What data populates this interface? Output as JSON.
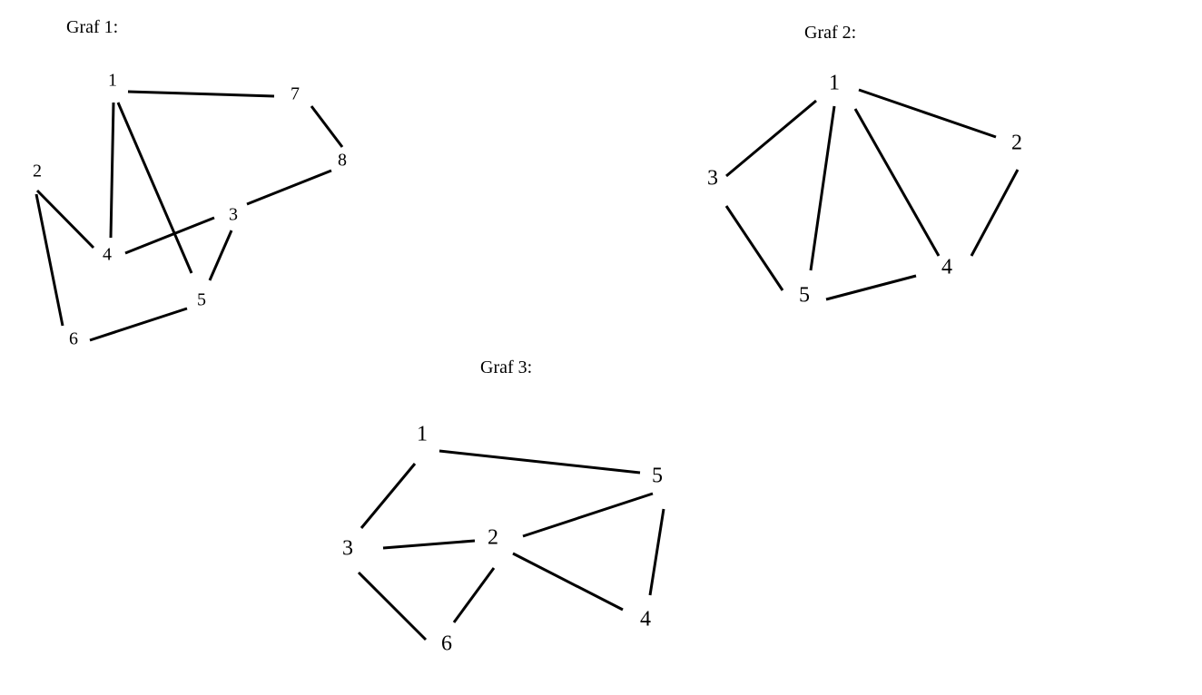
{
  "colors": {
    "background": "#ffffff",
    "ink": "#000000"
  },
  "graphs": [
    {
      "id": "graf-1",
      "title": "Graf 1:",
      "nodes": [
        "1",
        "2",
        "3",
        "4",
        "5",
        "6",
        "7",
        "8"
      ],
      "edges": [
        [
          "1",
          "7"
        ],
        [
          "7",
          "8"
        ],
        [
          "8",
          "3"
        ],
        [
          "1",
          "4"
        ],
        [
          "1",
          "5"
        ],
        [
          "2",
          "4"
        ],
        [
          "2",
          "6"
        ],
        [
          "4",
          "3"
        ],
        [
          "3",
          "5"
        ],
        [
          "5",
          "6"
        ]
      ]
    },
    {
      "id": "graf-2",
      "title": "Graf 2:",
      "nodes": [
        "1",
        "2",
        "3",
        "4",
        "5"
      ],
      "edges": [
        [
          "1",
          "2"
        ],
        [
          "1",
          "3"
        ],
        [
          "1",
          "5"
        ],
        [
          "1",
          "4"
        ],
        [
          "2",
          "4"
        ],
        [
          "3",
          "5"
        ],
        [
          "5",
          "4"
        ]
      ]
    },
    {
      "id": "graf-3",
      "title": "Graf 3:",
      "nodes": [
        "1",
        "2",
        "3",
        "4",
        "5",
        "6"
      ],
      "edges": [
        [
          "1",
          "5"
        ],
        [
          "1",
          "3"
        ],
        [
          "3",
          "2"
        ],
        [
          "2",
          "5"
        ],
        [
          "5",
          "4"
        ],
        [
          "2",
          "4"
        ],
        [
          "2",
          "6"
        ],
        [
          "3",
          "6"
        ]
      ]
    }
  ]
}
